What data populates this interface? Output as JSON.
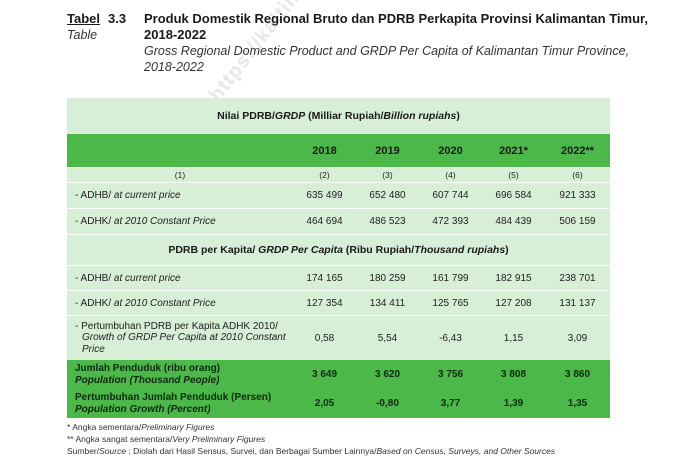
{
  "watermark": "https://kaltim.b",
  "header": {
    "tabel_label": "Tabel",
    "tabel_number": "3.3",
    "table_label_en": "Table",
    "title_id": "Produk Domestik Regional Bruto dan PDRB Perkapita Provinsi Kalimantan Timur, 2018-2022",
    "title_en": "Gross Regional Domestic Product and GRDP Per Capita of Kalimantan Timur Province, 2018-2022"
  },
  "sections": {
    "pdrb_title_a": "Nilai PDRB/",
    "pdrb_title_b": "GRDP",
    "pdrb_title_c": " (Milliar Rupiah/",
    "pdrb_title_d": "Billion rupiahs",
    "pdrb_title_e": ")",
    "capita_title_a": "PDRB per Kapita/ ",
    "capita_title_b": "GRDP Per Capita",
    "capita_title_c": " (Ribu Rupiah/",
    "capita_title_d": "Thousand rupiahs",
    "capita_title_e": ")"
  },
  "years": [
    "2018",
    "2019",
    "2020",
    "2021*",
    "2022**"
  ],
  "col_numbers": [
    "(1)",
    "(2)",
    "(3)",
    "(4)",
    "(5)",
    "(6)"
  ],
  "rows": {
    "adhb": {
      "label_a": "- ADHB/ ",
      "label_b": "at current price",
      "values": [
        "635 499",
        "652 480",
        "607 744",
        "696 584",
        "921 333"
      ]
    },
    "adhk": {
      "label_a": "- ADHK/ ",
      "label_b": "at 2010 Constant Price",
      "values": [
        "464 694",
        "486 523",
        "472 393",
        "484 439",
        "506 159"
      ]
    },
    "cap_adhb": {
      "label_a": "- ADHB/ ",
      "label_b": "at current price",
      "values": [
        "174 165",
        "180 259",
        "161 799",
        "182 915",
        "238 701"
      ]
    },
    "cap_adhk": {
      "label_a": "- ADHK/ ",
      "label_b": "at 2010 Constant Price",
      "values": [
        "127 354",
        "134 411",
        "125 765",
        "127 208",
        "131 137"
      ]
    },
    "growth": {
      "label_l1": "- Pertumbuhan PDRB per Kapita ADHK 2010/",
      "label_l2": "Growth of GRDP Per Capita at 2010 Constant",
      "label_l3": "Price",
      "values": [
        "0,58",
        "5,54",
        "-6,43",
        "1,15",
        "3,09"
      ]
    },
    "population": {
      "label_l1": "Jumlah Penduduk (ribu orang)",
      "label_l2": "Population (Thousand People)",
      "values": [
        "3 649",
        "3 620",
        "3 756",
        "3 808",
        "3 860"
      ]
    },
    "pop_growth": {
      "label_l1": "Pertumbuhan Jumlah Penduduk (Persen)",
      "label_l2": "Population Growth (Percent)",
      "values": [
        "2,05",
        "-0,80",
        "3,77",
        "1,39",
        "1,35"
      ]
    }
  },
  "notes": {
    "n1_a": "* Angka sementara/",
    "n1_b": "Preliminary Figures",
    "n2_a": "** Angka sangat sementara/",
    "n2_b": "Very Preliminary Figures",
    "src_a": "Sumber/",
    "src_b": "Source",
    "src_c": " : Diolah dari Hasil Sensus, Survei, dan Berbagai Sumber Lainnya/",
    "src_d": "Based on Census, Surveys, and Other Sources"
  },
  "colors": {
    "green": "#4cb84a",
    "pale_green": "#d7eed7"
  }
}
